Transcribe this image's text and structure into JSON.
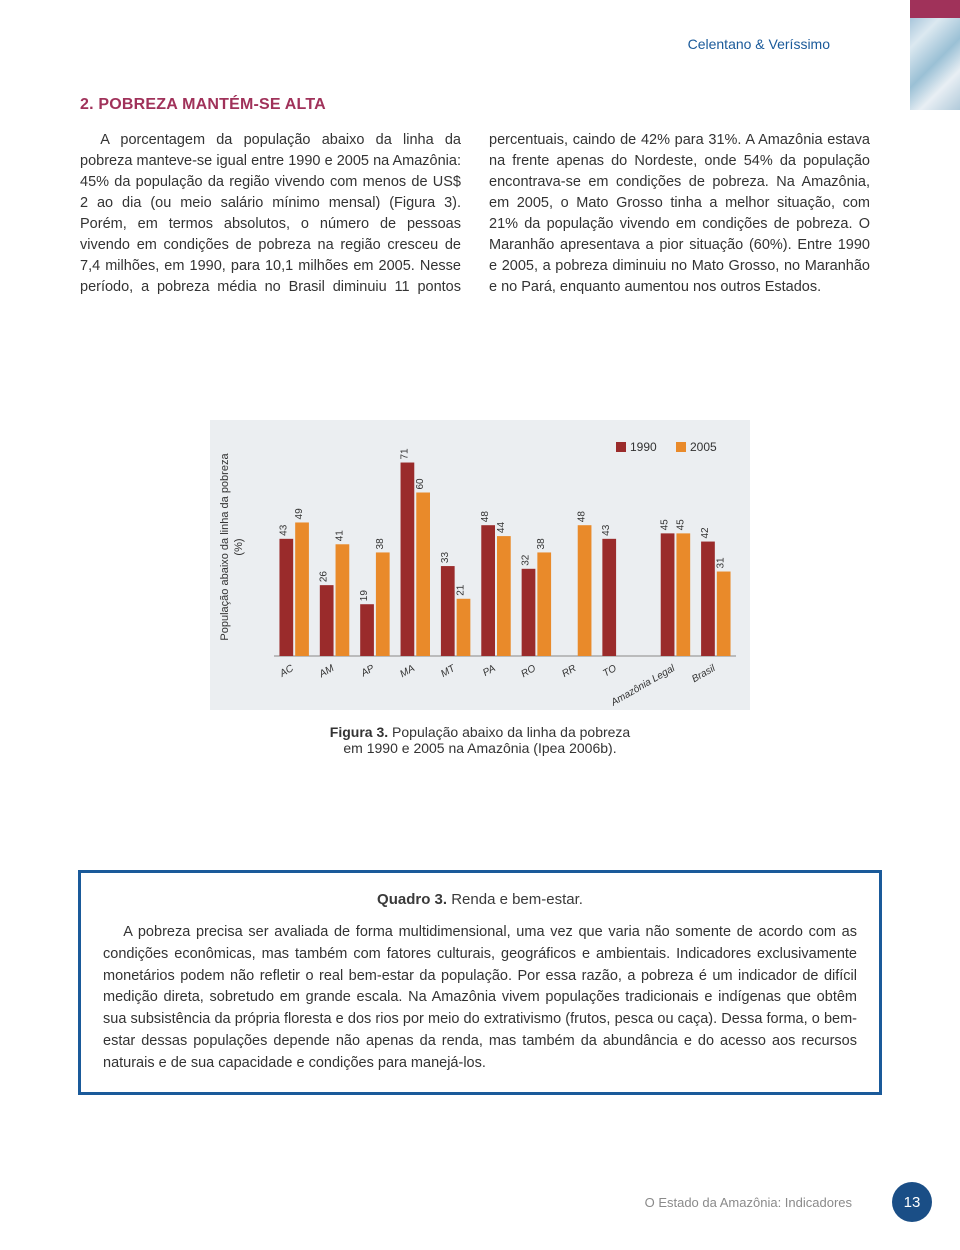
{
  "header": {
    "authors": "Celentano & Veríssimo"
  },
  "section": {
    "heading": "2. POBREZA MANTÉM-SE ALTA"
  },
  "body": {
    "col_text": "A porcentagem da população abaixo da linha da pobreza manteve-se igual entre 1990 e 2005 na Amazônia: 45% da população da região vivendo com menos de US$ 2 ao dia (ou meio salário mínimo mensal) (Figura 3). Porém, em termos absolutos, o número de pessoas vivendo em condições de pobreza na região cresceu de 7,4 milhões, em 1990, para 10,1 milhões em 2005. Nesse período, a pobreza média no Brasil diminuiu 11 pontos percentuais, caindo de 42% para 31%. A Amazônia estava na frente apenas do Nordeste, onde 54% da população encontrava-se em condições de pobreza. Na Amazônia, em 2005, o Mato Grosso tinha a melhor situação, com 21% da população vivendo em condições de pobreza. O Maranhão apresentava a pior situação (60%). Entre 1990 e 2005, a pobreza diminuiu no Mato Grosso, no Maranhão e no Pará, enquanto aumentou nos outros Estados."
  },
  "chart": {
    "type": "bar",
    "background_color": "#ebeef1",
    "plot_bg": "#ebeef1",
    "ylabel": "População abaixo da linha da pobreza\\n(%)",
    "ylabel_fontsize": 11,
    "categories": [
      "AC",
      "AM",
      "AP",
      "MA",
      "MT",
      "PA",
      "RO",
      "RR",
      "TO",
      "Amazônia Legal",
      "Brasil"
    ],
    "series": [
      {
        "name": "1990",
        "color": "#9a2b2b",
        "values": [
          43,
          26,
          19,
          71,
          33,
          48,
          32,
          null,
          43,
          45,
          42
        ]
      },
      {
        "name": "2005",
        "color": "#e98a2a",
        "values": [
          49,
          41,
          38,
          60,
          21,
          44,
          38,
          48,
          null,
          45,
          31
        ]
      }
    ],
    "ylim": [
      0,
      80
    ],
    "bar_width": 0.34,
    "value_label_color": "#333333",
    "value_label_fontsize": 10,
    "category_label_fontsize": 10,
    "category_label_angle": -30,
    "legend": {
      "labels": [
        "1990",
        "2005"
      ],
      "swatch_colors": [
        "#9a2b2b",
        "#e98a2a"
      ],
      "fontsize": 12,
      "position": "top-right"
    },
    "caption_bold": "Figura 3.",
    "caption_rest": " População abaixo da linha da pobreza\nem 1990 e 2005 na Amazônia (Ipea 2006b)."
  },
  "box": {
    "title_bold": "Quadro 3.",
    "title_rest": " Renda e bem-estar.",
    "body": "A pobreza precisa ser avaliada de forma multidimensional, uma vez que varia não somente de acordo com as condições econômicas, mas também com fatores culturais, geográficos e ambientais. Indicadores exclusivamente monetários podem não refletir o real bem-estar da população. Por essa razão, a pobreza é um indicador de difícil medição direta, sobretudo em grande escala. Na Amazônia vivem populações tradicionais e indígenas que obtêm sua subsistência da própria floresta e dos rios por meio do extrativismo (frutos, pesca ou caça). Dessa forma, o bem-estar dessas populações depende não apenas da renda, mas também da abundância e do acesso aos recursos naturais e de sua capacidade e condições para manejá-los.",
    "border_color": "#1a5a9a"
  },
  "footer": {
    "title": "O Estado da Amazônia: Indicadores",
    "page_number": "13",
    "badge_color": "#1a4e86"
  }
}
